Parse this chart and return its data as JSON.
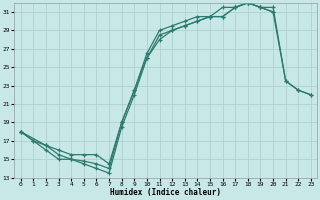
{
  "background_color": "#c8e8e8",
  "grid_color": "#aacccc",
  "line_color": "#2d7a6e",
  "xlabel": "Humidex (Indice chaleur)",
  "xlim": [
    -0.5,
    23.5
  ],
  "ylim": [
    13,
    32
  ],
  "xticks": [
    0,
    1,
    2,
    3,
    4,
    5,
    6,
    7,
    8,
    9,
    10,
    11,
    12,
    13,
    14,
    15,
    16,
    17,
    18,
    19,
    20,
    21,
    22,
    23
  ],
  "yticks": [
    13,
    15,
    17,
    19,
    21,
    23,
    25,
    27,
    29,
    31
  ],
  "line1_x": [
    0,
    1,
    2,
    3,
    4,
    5,
    6,
    7,
    8,
    9,
    10,
    11,
    12,
    13,
    14,
    15,
    16,
    17,
    18,
    19,
    20
  ],
  "line1_y": [
    18.0,
    17.0,
    16.5,
    15.5,
    15.0,
    14.8,
    14.5,
    14.0,
    19.0,
    22.5,
    26.5,
    29.0,
    29.5,
    30.0,
    30.5,
    30.5,
    31.5,
    31.5,
    32.0,
    31.5,
    31.0
  ],
  "line2_x": [
    0,
    2,
    3,
    4,
    5,
    6,
    7,
    8,
    9,
    10,
    11,
    12,
    13,
    14,
    15,
    16,
    17,
    18,
    19,
    20,
    21,
    22,
    23
  ],
  "line2_y": [
    18.0,
    16.5,
    16.0,
    15.5,
    15.5,
    15.5,
    14.5,
    19.0,
    22.5,
    26.0,
    28.0,
    29.0,
    29.5,
    30.0,
    30.5,
    30.5,
    31.5,
    32.0,
    31.5,
    31.5,
    23.5,
    22.5,
    22.0
  ],
  "line3_x": [
    0,
    1,
    2,
    3,
    4,
    5,
    6,
    7,
    8,
    9,
    10,
    11,
    12,
    13,
    14,
    15,
    16,
    17,
    18,
    19,
    20,
    21,
    22,
    23
  ],
  "line3_y": [
    18.0,
    17.0,
    16.0,
    15.0,
    15.0,
    14.5,
    14.0,
    13.5,
    18.5,
    22.0,
    26.0,
    28.5,
    29.0,
    29.5,
    30.0,
    30.5,
    30.5,
    31.5,
    32.0,
    31.5,
    31.0,
    23.5,
    22.5,
    22.0
  ]
}
